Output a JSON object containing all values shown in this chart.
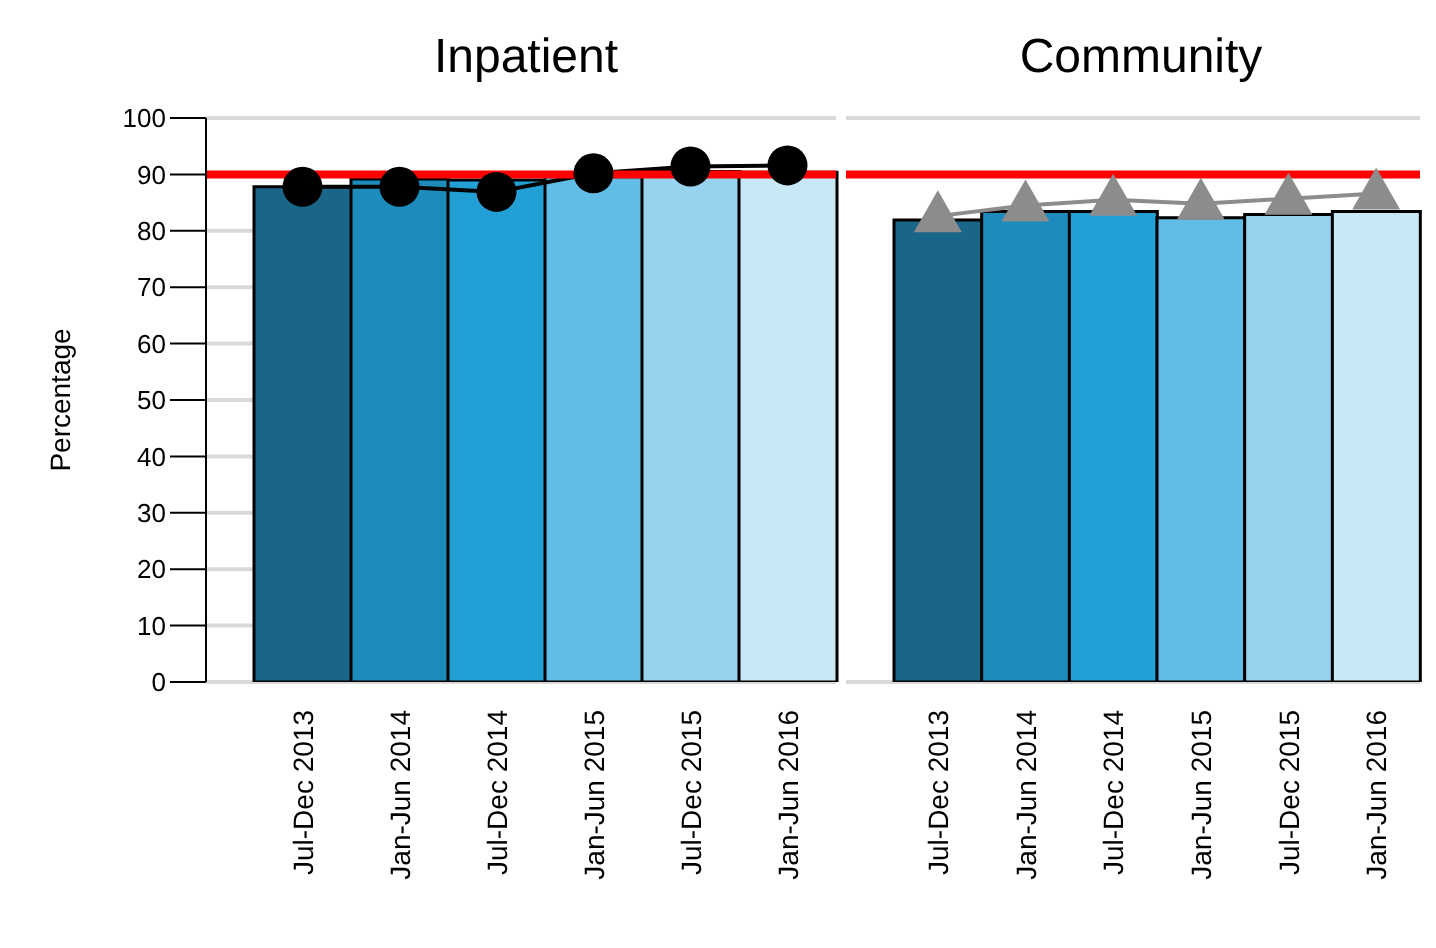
{
  "chart_data": [
    {
      "type": "bar",
      "title": "Inpatient",
      "ylabel": "Percentage",
      "categories": [
        "Jul-Dec 2013",
        "Jan-Jun 2014",
        "Jul-Dec 2014",
        "Jan-Jun 2015",
        "Jul-Dec 2015",
        "Jan-Jun 2016"
      ],
      "series": [
        {
          "colors": [
            "#1a6688",
            "#1e8bbd",
            "#22a0d6",
            "#62bde6",
            "#97d3ee",
            "#c9e8f5"
          ],
          "values": [
            87.8,
            89.2,
            89.0,
            89.6,
            90.5,
            90.4
          ]
        },
        {
          "type": "line",
          "color": "#000000",
          "marker": "circle",
          "values": [
            87.8,
            87.8,
            86.9,
            90.2,
            91.4,
            91.6
          ]
        }
      ],
      "ylim": [
        0,
        100
      ],
      "yticks": [
        0,
        10,
        20,
        30,
        40,
        50,
        60,
        70,
        80,
        90,
        100
      ],
      "grid": "y",
      "ref_lines": [
        {
          "axis": "y",
          "value": 90,
          "color": "#ff0000"
        }
      ]
    },
    {
      "type": "bar",
      "title": "Community",
      "categories": [
        "Jul-Dec 2013",
        "Jan-Jun 2014",
        "Jul-Dec 2014",
        "Jan-Jun 2015",
        "Jul-Dec 2015",
        "Jan-Jun 2016"
      ],
      "series": [
        {
          "colors": [
            "#1a6688",
            "#1e8bbd",
            "#22a0d6",
            "#62bde6",
            "#97d3ee",
            "#c9e8f5"
          ],
          "values": [
            81.9,
            83.4,
            83.4,
            82.3,
            82.9,
            83.4
          ]
        },
        {
          "type": "line",
          "color": "#8c8c8c",
          "marker": "triangle",
          "values": [
            82.6,
            84.5,
            85.5,
            84.8,
            85.7,
            86.6
          ]
        }
      ],
      "ylim": [
        0,
        100
      ],
      "yticks": [
        0,
        10,
        20,
        30,
        40,
        50,
        60,
        70,
        80,
        90,
        100
      ],
      "grid": "y",
      "tick_labels": "x",
      "ref_lines": [
        {
          "axis": "y",
          "value": 90,
          "color": "#ff0000"
        }
      ]
    }
  ]
}
